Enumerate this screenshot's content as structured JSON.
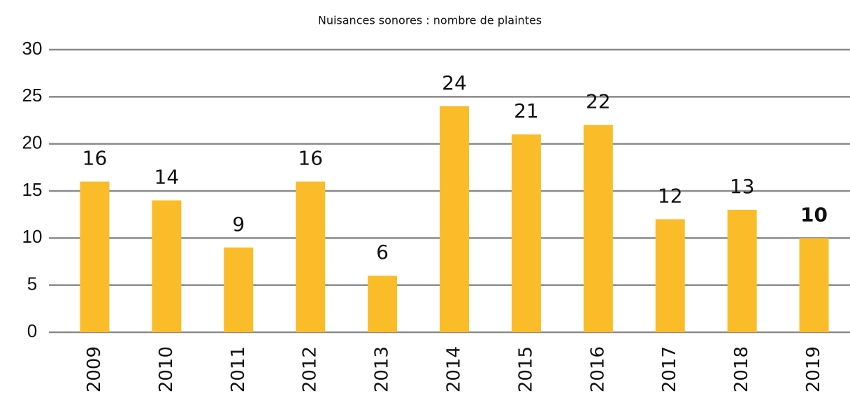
{
  "chart_data": {
    "type": "bar",
    "title": "Nuisances sonores : nombre de plaintes",
    "categories": [
      "2009",
      "2010",
      "2011",
      "2012",
      "2013",
      "2014",
      "2015",
      "2016",
      "2017",
      "2018",
      "2019"
    ],
    "values": [
      16,
      14,
      9,
      16,
      6,
      24,
      21,
      22,
      12,
      13,
      10
    ],
    "color": "#fbbc2a",
    "ylim": [
      0,
      30
    ],
    "yticks": [
      0,
      5,
      10,
      15,
      20,
      25,
      30
    ],
    "grid": true
  }
}
